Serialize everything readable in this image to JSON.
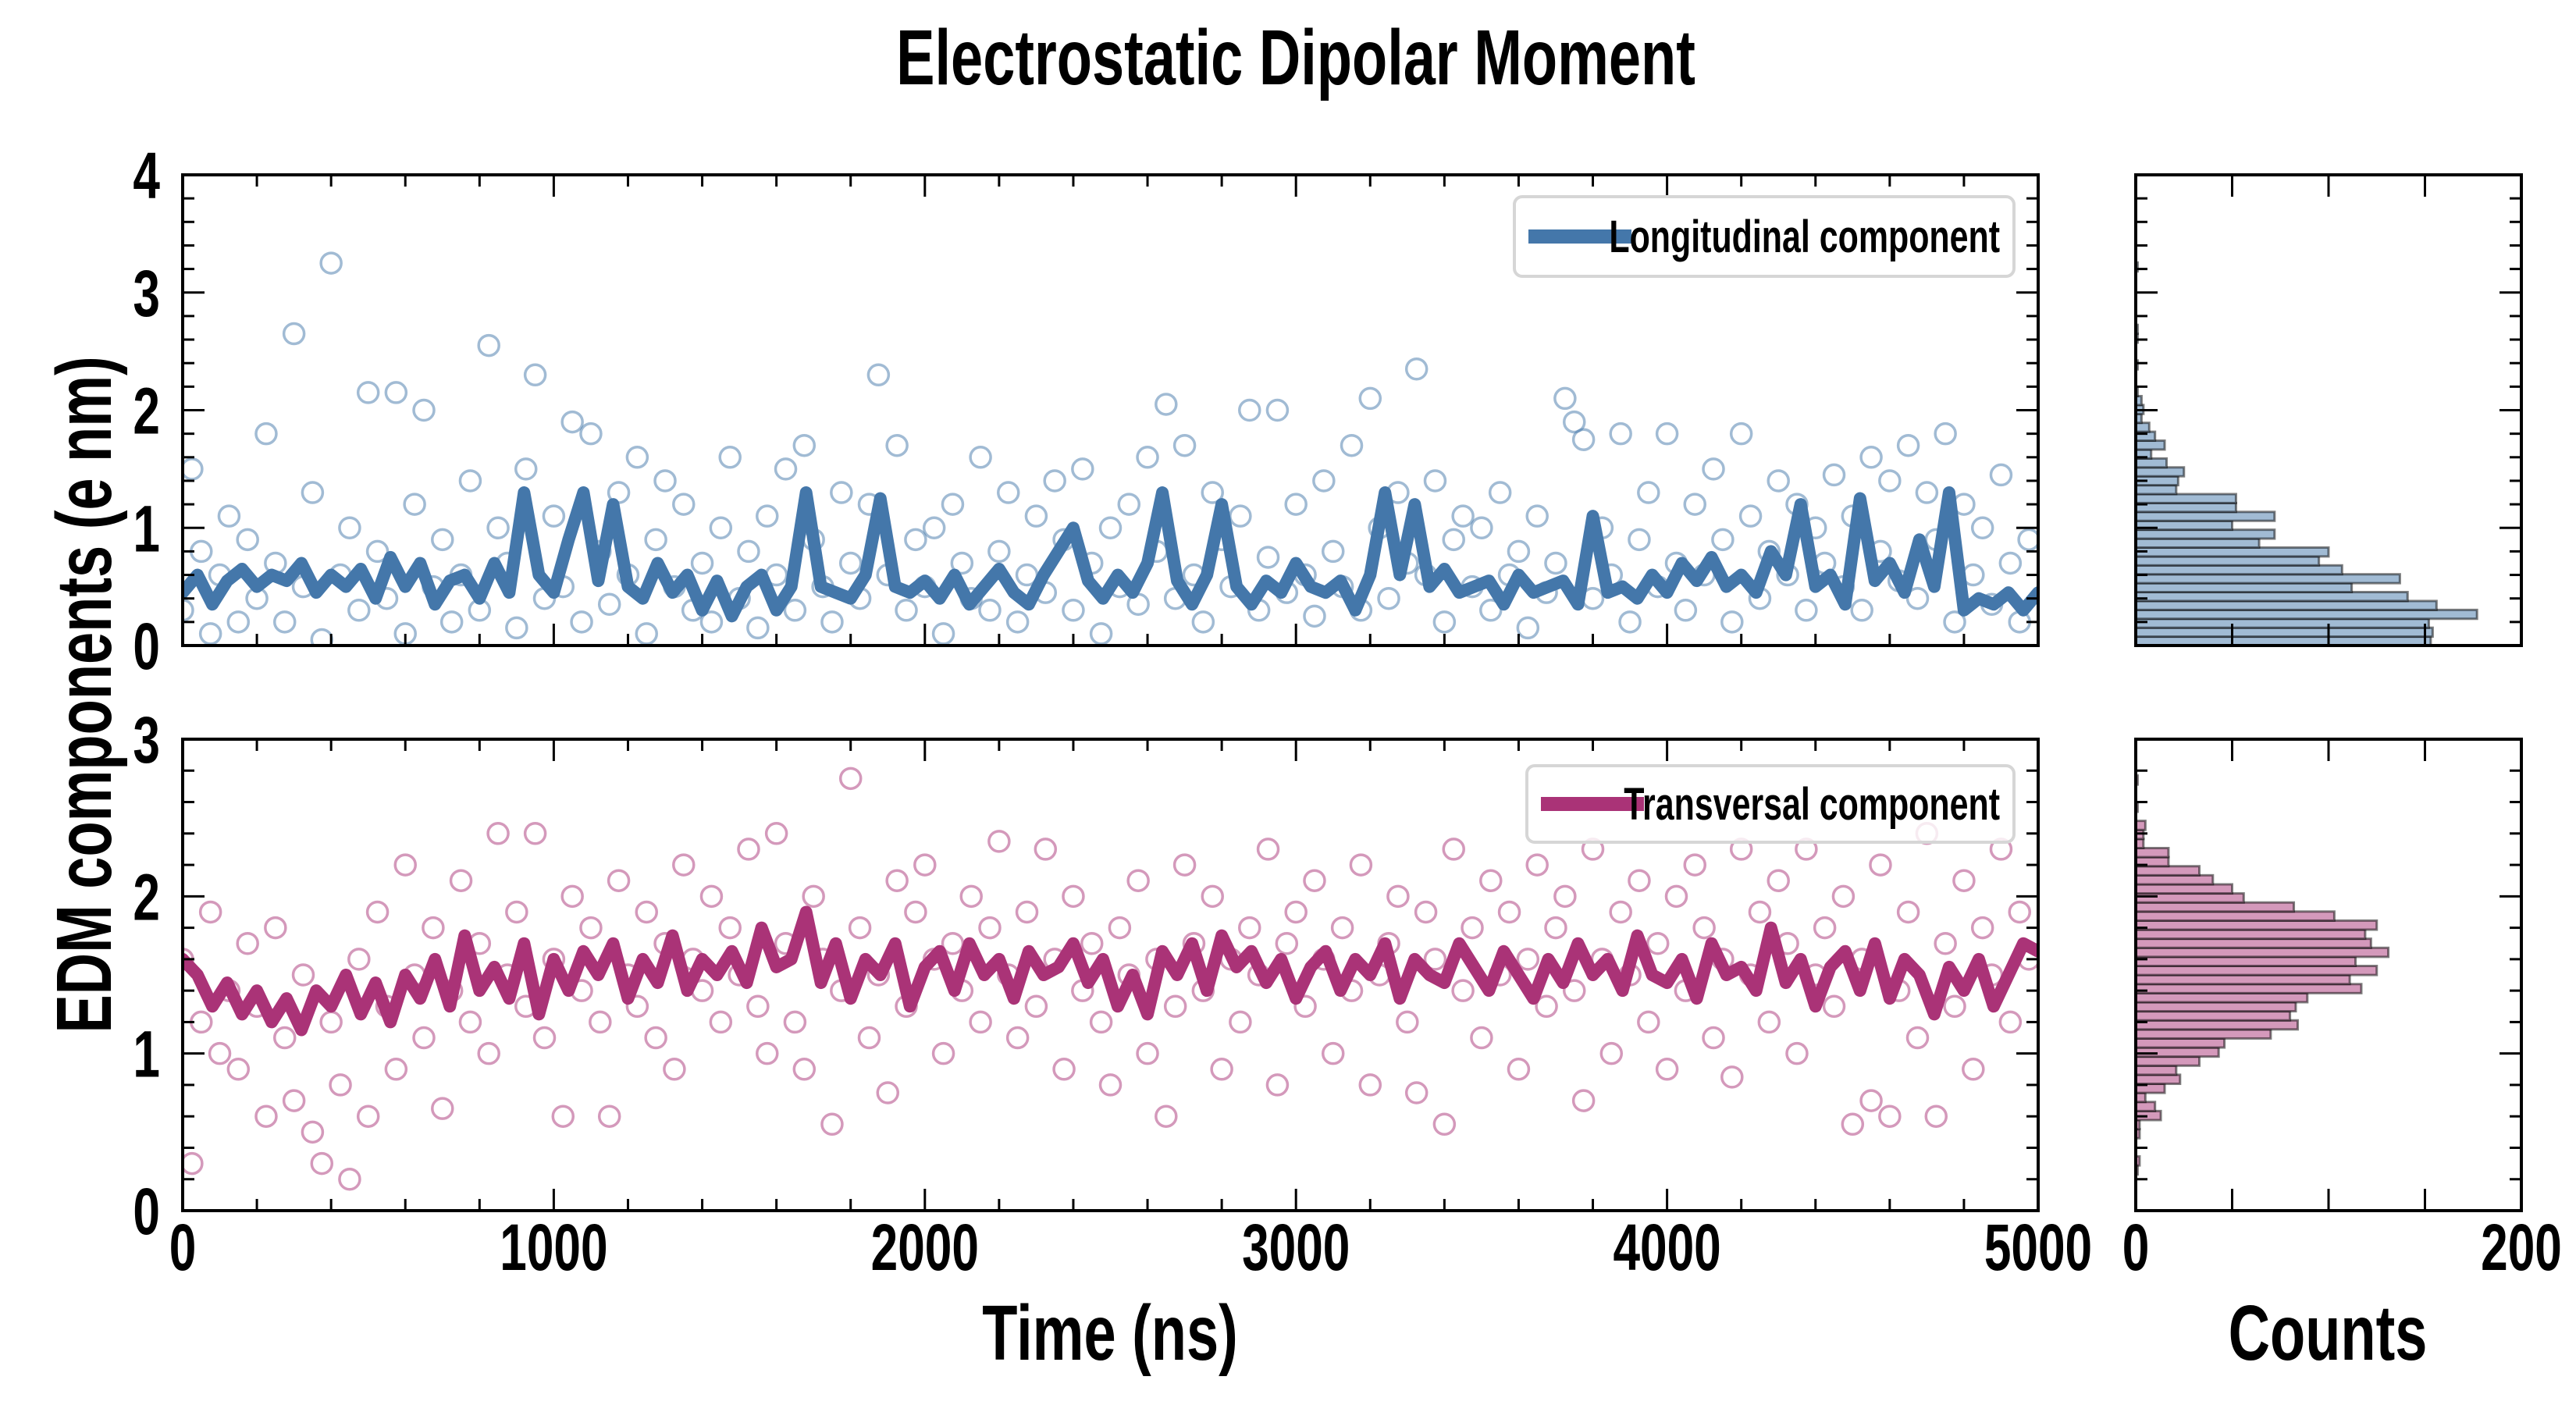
{
  "chart_data": [
    {
      "type": "scatter",
      "panel": "top-main",
      "title": "Electrostatic Dipolar Moment",
      "xlabel": "Time (ns)",
      "ylabel": "EDM components (e nm)",
      "xlim": [
        0,
        5000
      ],
      "ylim": [
        0,
        4
      ],
      "xticks": [
        0,
        1000,
        2000,
        3000,
        4000,
        5000
      ],
      "xtick_labels": [
        "0",
        "1000",
        "2000",
        "3000",
        "4000",
        "5000"
      ],
      "yticks": [
        0,
        1,
        2,
        3,
        4
      ],
      "ytick_labels": [
        "0",
        "1",
        "2",
        "3",
        "4"
      ],
      "legend": {
        "label": "Longitudinal component",
        "placement": "top-right"
      },
      "color": "#4477aa",
      "scatter": {
        "x_start": 0,
        "x_step": 25,
        "y": [
          0.3,
          1.5,
          0.8,
          0.1,
          0.6,
          1.1,
          0.2,
          0.9,
          0.4,
          1.8,
          0.7,
          0.2,
          2.65,
          0.5,
          1.3,
          0.05,
          3.25,
          0.6,
          1.0,
          0.3,
          2.15,
          0.8,
          0.4,
          2.15,
          0.1,
          1.2,
          2.0,
          0.5,
          0.9,
          0.2,
          0.6,
          1.4,
          0.3,
          2.55,
          1.0,
          0.7,
          0.15,
          1.5,
          2.3,
          0.4,
          1.1,
          0.5,
          1.9,
          0.2,
          1.8,
          0.8,
          0.35,
          1.3,
          0.6,
          1.6,
          0.1,
          0.9,
          1.4,
          0.5,
          1.2,
          0.3,
          0.7,
          0.2,
          1.0,
          1.6,
          0.4,
          0.8,
          0.15,
          1.1,
          0.6,
          1.5,
          0.3,
          1.7,
          0.9,
          0.5,
          0.2,
          1.3,
          0.7,
          0.4,
          1.2,
          2.3,
          0.6,
          1.7,
          0.3,
          0.9,
          0.5,
          1.0,
          0.1,
          1.2,
          0.7,
          0.4,
          1.6,
          0.3,
          0.8,
          1.3,
          0.2,
          0.6,
          1.1,
          0.45,
          1.4,
          0.9,
          0.3,
          1.5,
          0.7,
          0.1,
          1.0,
          0.5,
          1.2,
          0.35,
          1.6,
          0.8,
          2.05,
          0.4,
          1.7,
          0.6,
          0.2,
          1.3,
          0.9,
          0.5,
          1.1,
          2.0,
          0.3,
          0.75,
          2.0,
          0.45,
          1.2,
          0.6,
          0.25,
          1.4,
          0.8,
          0.5,
          1.7,
          0.3,
          2.1,
          1.0,
          0.4,
          1.3,
          0.7,
          2.35,
          0.6,
          1.4,
          0.2,
          0.9,
          1.1,
          0.5,
          1.0,
          0.3,
          1.3,
          0.6,
          0.8,
          0.15,
          1.1,
          0.45,
          0.7,
          2.1,
          1.9,
          1.75,
          0.4,
          1.0,
          0.6,
          1.8,
          0.2,
          0.9,
          1.3,
          0.5,
          1.8,
          0.7,
          0.3,
          1.2,
          0.6,
          1.5,
          0.9,
          0.2,
          1.8,
          1.1,
          0.4,
          0.8,
          1.4,
          0.6,
          1.2,
          0.3,
          1.0,
          0.7,
          1.45,
          0.5,
          1.1,
          0.3,
          1.6,
          0.8,
          1.4,
          0.55,
          1.7,
          0.4,
          1.3,
          0.9,
          1.8,
          0.2,
          1.2,
          0.6,
          1.0,
          0.35,
          1.45,
          0.7,
          0.2,
          0.9
        ]
      },
      "line": {
        "x_start": 0,
        "x_end": 5000,
        "y": [
          0.45,
          0.6,
          0.35,
          0.55,
          0.65,
          0.5,
          0.6,
          0.55,
          0.7,
          0.45,
          0.6,
          0.5,
          0.65,
          0.4,
          0.75,
          0.5,
          0.7,
          0.35,
          0.55,
          0.6,
          0.4,
          0.7,
          0.45,
          1.3,
          0.6,
          0.45,
          0.9,
          1.3,
          0.55,
          1.2,
          0.5,
          0.4,
          0.7,
          0.45,
          0.6,
          0.3,
          0.55,
          0.25,
          0.5,
          0.6,
          0.3,
          0.5,
          1.3,
          0.5,
          0.45,
          0.4,
          0.6,
          1.25,
          0.5,
          0.45,
          0.55,
          0.4,
          0.6,
          0.35,
          0.5,
          0.65,
          0.45,
          0.35,
          0.6,
          0.8,
          1.0,
          0.55,
          0.4,
          0.6,
          0.45,
          0.7,
          1.3,
          0.55,
          0.35,
          0.6,
          1.2,
          0.5,
          0.35,
          0.55,
          0.45,
          0.7,
          0.5,
          0.45,
          0.55,
          0.3,
          0.6,
          1.3,
          0.6,
          1.2,
          0.5,
          0.65,
          0.45,
          0.5,
          0.55,
          0.35,
          0.6,
          0.45,
          0.5,
          0.55,
          0.35,
          1.1,
          0.45,
          0.5,
          0.4,
          0.6,
          0.45,
          0.7,
          0.55,
          0.75,
          0.5,
          0.6,
          0.45,
          0.8,
          0.6,
          1.2,
          0.5,
          0.6,
          0.35,
          1.25,
          0.55,
          0.7,
          0.45,
          0.9,
          0.5,
          1.3,
          0.3,
          0.4,
          0.35,
          0.45,
          0.3,
          0.45
        ]
      }
    },
    {
      "type": "scatter",
      "panel": "bottom-main",
      "xlim": [
        0,
        5000
      ],
      "ylim": [
        0,
        3
      ],
      "yticks": [
        0,
        1,
        2,
        3
      ],
      "ytick_labels": [
        "0",
        "1",
        "2",
        "3"
      ],
      "legend": {
        "label": "Transversal component",
        "placement": "top-right"
      },
      "color": "#aa3377",
      "scatter": {
        "x_start": 0,
        "x_step": 25,
        "y": [
          1.6,
          0.3,
          1.2,
          1.9,
          1.0,
          1.4,
          0.9,
          1.7,
          1.3,
          0.6,
          1.8,
          1.1,
          0.7,
          1.5,
          0.5,
          0.3,
          1.2,
          0.8,
          0.2,
          1.6,
          0.6,
          1.9,
          1.3,
          0.9,
          2.2,
          1.5,
          1.1,
          1.8,
          0.65,
          1.4,
          2.1,
          1.2,
          1.7,
          1.0,
          2.4,
          1.5,
          1.9,
          1.3,
          2.4,
          1.1,
          1.6,
          0.6,
          2.0,
          1.4,
          1.8,
          1.2,
          0.6,
          2.1,
          1.5,
          1.3,
          1.9,
          1.1,
          1.7,
          0.9,
          2.2,
          1.6,
          1.4,
          2.0,
          1.2,
          1.8,
          1.5,
          2.3,
          1.3,
          1.0,
          2.4,
          1.7,
          1.2,
          0.9,
          2.0,
          1.6,
          0.55,
          1.4,
          2.75,
          1.8,
          1.1,
          1.5,
          0.75,
          2.1,
          1.3,
          1.9,
          2.2,
          1.6,
          1.0,
          1.7,
          1.4,
          2.0,
          1.2,
          1.8,
          2.35,
          1.5,
          1.1,
          1.9,
          1.3,
          2.3,
          1.6,
          0.9,
          2.0,
          1.4,
          1.7,
          1.2,
          0.8,
          1.8,
          1.5,
          2.1,
          1.0,
          1.6,
          0.6,
          1.3,
          2.2,
          1.7,
          1.4,
          2.0,
          0.9,
          1.6,
          1.2,
          1.8,
          1.5,
          2.3,
          0.8,
          1.7,
          1.9,
          1.3,
          2.1,
          1.6,
          1.0,
          1.8,
          1.4,
          2.2,
          0.8,
          1.5,
          1.7,
          2.0,
          1.2,
          0.75,
          1.9,
          1.6,
          0.55,
          2.3,
          1.4,
          1.8,
          1.1,
          2.1,
          1.5,
          1.9,
          0.9,
          1.6,
          2.2,
          1.3,
          1.8,
          2.0,
          1.4,
          0.7,
          2.3,
          1.6,
          1.0,
          1.9,
          1.5,
          2.1,
          1.2,
          1.7,
          0.9,
          2.0,
          1.4,
          2.2,
          1.8,
          1.1,
          1.6,
          0.85,
          2.3,
          1.5,
          1.9,
          1.2,
          2.1,
          1.7,
          1.0,
          2.3,
          1.5,
          1.8,
          1.3,
          2.0,
          0.55,
          1.6,
          0.7,
          2.2,
          0.6,
          1.4,
          1.9,
          1.1,
          2.4,
          0.6,
          1.7,
          1.3,
          2.1,
          0.9,
          1.8,
          1.5,
          2.3,
          1.2,
          1.9,
          1.6
        ]
      },
      "line": {
        "x_start": 0,
        "x_end": 5000,
        "y": [
          1.6,
          1.5,
          1.3,
          1.45,
          1.25,
          1.4,
          1.2,
          1.35,
          1.15,
          1.4,
          1.3,
          1.5,
          1.25,
          1.45,
          1.2,
          1.5,
          1.35,
          1.6,
          1.3,
          1.75,
          1.4,
          1.55,
          1.35,
          1.7,
          1.25,
          1.6,
          1.4,
          1.65,
          1.5,
          1.7,
          1.35,
          1.6,
          1.45,
          1.75,
          1.4,
          1.6,
          1.5,
          1.65,
          1.45,
          1.8,
          1.55,
          1.6,
          1.9,
          1.45,
          1.7,
          1.35,
          1.6,
          1.5,
          1.7,
          1.3,
          1.55,
          1.65,
          1.4,
          1.7,
          1.5,
          1.6,
          1.35,
          1.65,
          1.5,
          1.55,
          1.7,
          1.45,
          1.6,
          1.3,
          1.5,
          1.25,
          1.65,
          1.5,
          1.7,
          1.4,
          1.75,
          1.55,
          1.65,
          1.45,
          1.6,
          1.35,
          1.55,
          1.65,
          1.4,
          1.6,
          1.5,
          1.7,
          1.35,
          1.6,
          1.5,
          1.45,
          1.7,
          1.55,
          1.4,
          1.65,
          1.5,
          1.35,
          1.6,
          1.45,
          1.7,
          1.5,
          1.6,
          1.4,
          1.75,
          1.5,
          1.45,
          1.6,
          1.35,
          1.7,
          1.5,
          1.55,
          1.4,
          1.8,
          1.45,
          1.6,
          1.3,
          1.55,
          1.65,
          1.4,
          1.7,
          1.35,
          1.6,
          1.5,
          1.25,
          1.55,
          1.4,
          1.6,
          1.3,
          1.5,
          1.7,
          1.65
        ]
      }
    },
    {
      "type": "bar",
      "orientation": "horizontal",
      "panel": "top-histogram",
      "ylim": [
        0,
        4
      ],
      "xlim": [
        0,
        200
      ],
      "xticks": [
        0,
        200
      ],
      "xtick_labels": [
        "0",
        "200"
      ],
      "bin_start": 0,
      "bin_width": 0.0757,
      "counts": [
        153,
        154,
        152,
        177,
        156,
        141,
        112,
        137,
        107,
        95,
        100,
        64,
        72,
        50,
        72,
        52,
        52,
        21,
        22,
        25,
        16,
        8,
        15,
        10,
        7,
        3,
        4,
        3,
        1,
        0,
        0,
        1,
        0,
        0,
        1,
        1,
        0,
        0,
        0,
        0,
        0,
        0,
        1
      ],
      "fill": "#a1bbd4"
    },
    {
      "type": "bar",
      "orientation": "horizontal",
      "panel": "bottom-histogram",
      "xlabel": "Counts",
      "ylim": [
        0,
        3
      ],
      "xlim": [
        0,
        200
      ],
      "xticks": [
        0,
        200
      ],
      "xtick_labels": [
        "0",
        "200"
      ],
      "bin_start": 0.23,
      "bin_width": 0.0577,
      "counts": [
        1,
        2,
        0,
        0,
        2,
        2,
        13,
        10,
        5,
        15,
        23,
        21,
        33,
        43,
        46,
        70,
        84,
        80,
        83,
        89,
        117,
        111,
        125,
        114,
        131,
        122,
        119,
        125,
        103,
        82,
        56,
        50,
        40,
        33,
        17,
        17,
        4,
        4,
        5,
        0,
        1,
        0,
        0,
        1
      ],
      "fill": "#d499bb"
    }
  ]
}
